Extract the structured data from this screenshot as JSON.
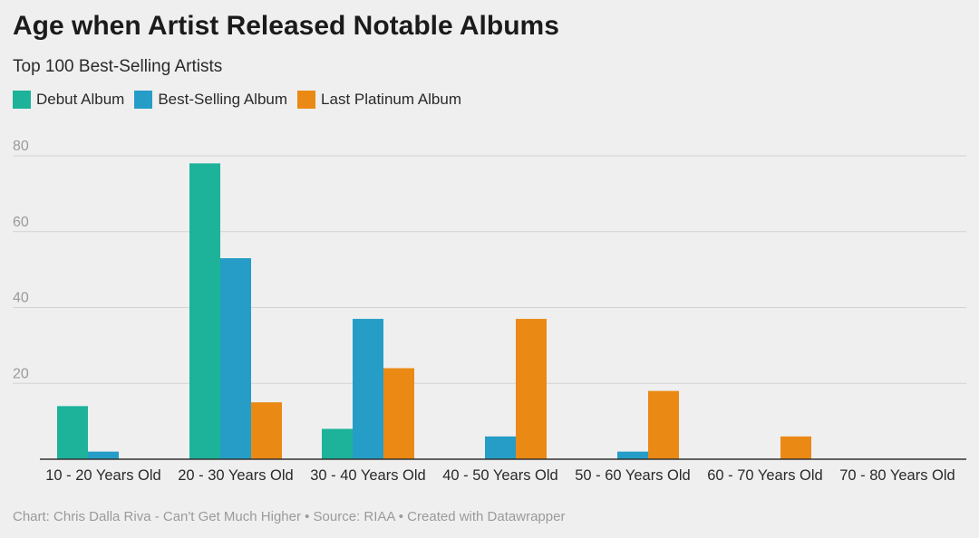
{
  "chart_data": {
    "type": "bar",
    "title": "Age when Artist Released Notable Albums",
    "subtitle": "Top 100 Best-Selling Artists",
    "categories": [
      "10 - 20 Years Old",
      "20 - 30 Years Old",
      "30 - 40 Years Old",
      "40 - 50 Years Old",
      "50 - 60 Years Old",
      "60 - 70 Years Old",
      "70 - 80 Years Old"
    ],
    "series": [
      {
        "name": "Debut Album",
        "color": "#1cb39a",
        "values": [
          14,
          78,
          8,
          0,
          0,
          0,
          0
        ]
      },
      {
        "name": "Best-Selling Album",
        "color": "#259dc7",
        "values": [
          2,
          53,
          37,
          6,
          2,
          0,
          0
        ]
      },
      {
        "name": "Last Platinum Album",
        "color": "#ea8a15",
        "values": [
          0,
          15,
          24,
          37,
          18,
          6,
          0
        ]
      }
    ],
    "yticks": [
      20,
      40,
      60,
      80
    ],
    "ylim": [
      0,
      80
    ],
    "grid": true,
    "legend_position": "top-left",
    "xlabel": "",
    "ylabel": "",
    "source": "Chart: Chris Dalla Riva - Can't Get Much Higher • Source: RIAA • Created with Datawrapper"
  }
}
